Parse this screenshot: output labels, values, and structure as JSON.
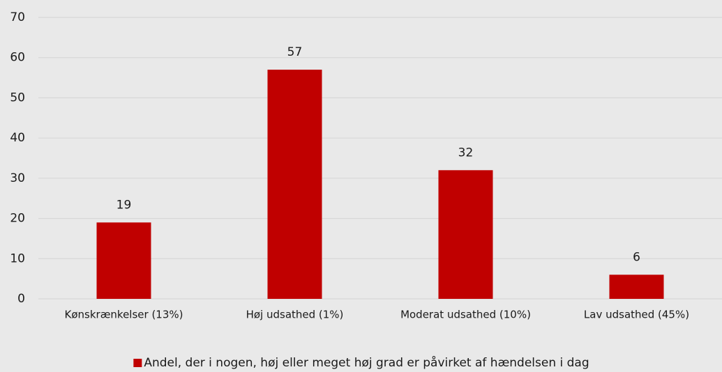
{
  "chart_data": {
    "type": "bar",
    "categories": [
      "Kønskrænkelser (13%)",
      "Høj udsathed (1%)",
      "Moderat udsathed (10%)",
      "Lav udsathed (45%)"
    ],
    "series": [
      {
        "name": "Andel, der i nogen, høj eller meget høj grad er påvirket af hændelsen i dag",
        "color": "#c00000",
        "values": [
          19,
          57,
          32,
          6
        ]
      }
    ],
    "ylim": [
      0,
      70
    ],
    "yticks": [
      0,
      10,
      20,
      30,
      40,
      50,
      60,
      70
    ],
    "grid": true,
    "legend": "bottom"
  }
}
